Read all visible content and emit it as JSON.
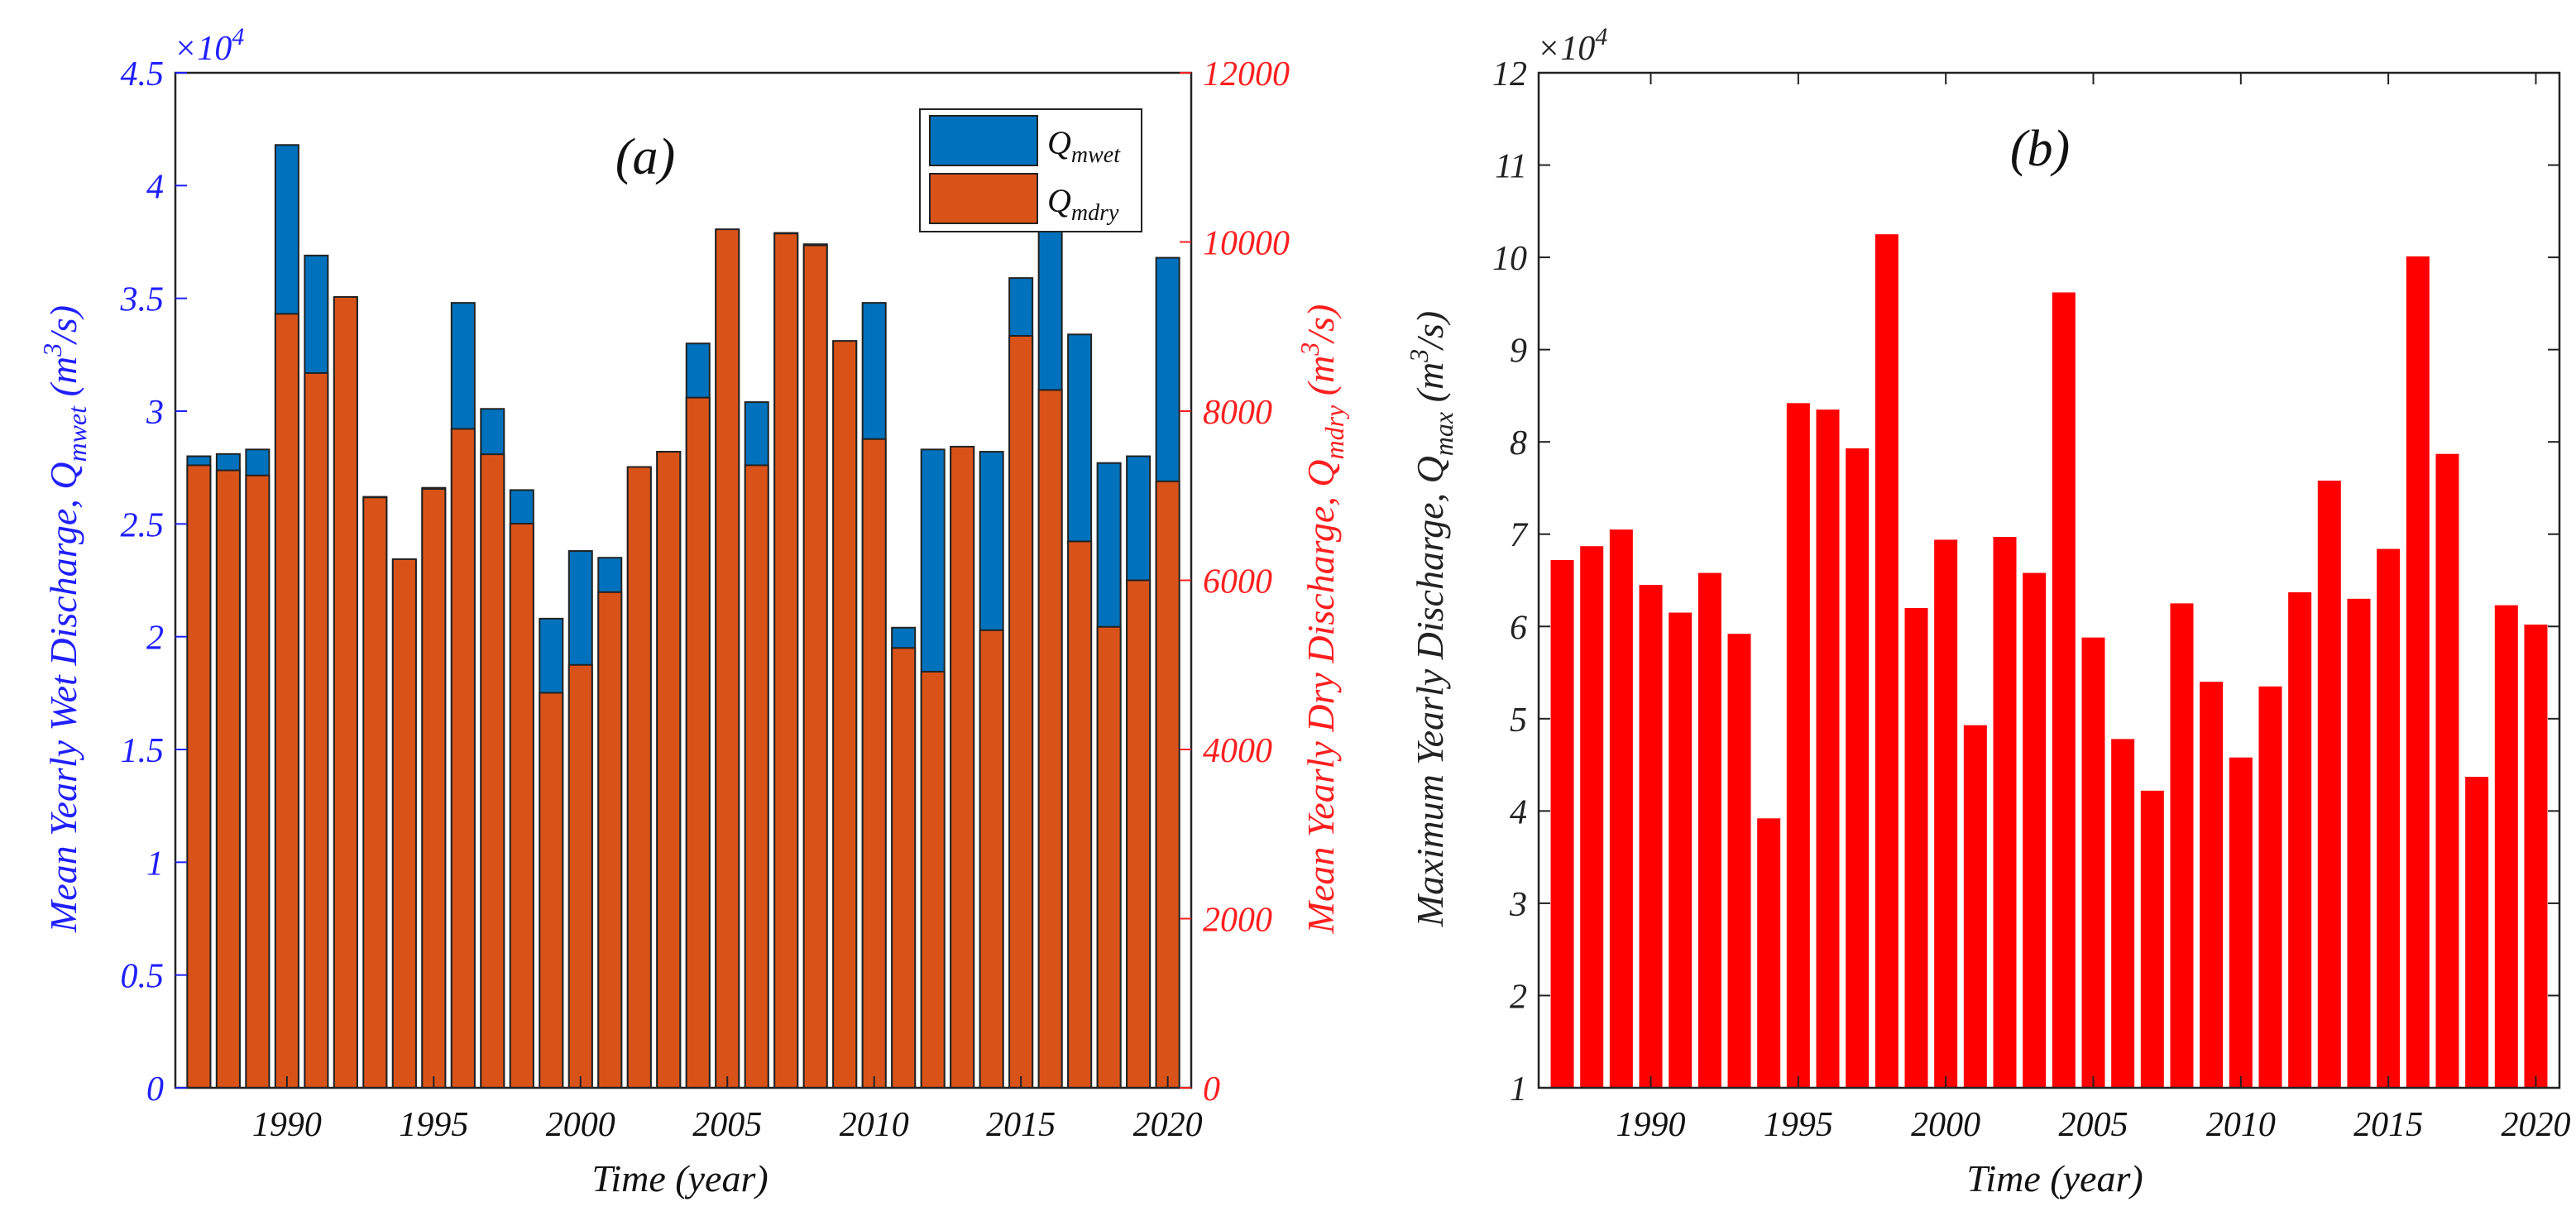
{
  "chart_data": [
    {
      "id": "a",
      "type": "bar",
      "panel_label": "(a)",
      "xlabel": "Time (year)",
      "ylabel_left": "Mean Yearly Wet Discharge, Q",
      "ylabel_left_sub": "mwet",
      "ylabel_left_units": " (m",
      "ylabel_left_units_sup": "3",
      "ylabel_left_units_end": "/s)",
      "ylabel_right": "Mean Yearly Dry Discharge, Q",
      "ylabel_right_sub": "mdry",
      "ylabel_right_units": " (m",
      "ylabel_right_units_sup": "3",
      "ylabel_right_units_end": "/s)",
      "left_exponent_base": "×10",
      "left_exponent_power": "4",
      "left_ylim": [
        0,
        4.5
      ],
      "left_yticks": [
        "0",
        "0.5",
        "1",
        "1.5",
        "2",
        "2.5",
        "3",
        "3.5",
        "4",
        "4.5"
      ],
      "right_ylim": [
        0,
        12000
      ],
      "right_yticks": [
        "0",
        "2000",
        "4000",
        "6000",
        "8000",
        "10000",
        "12000"
      ],
      "xlim": [
        1986.2,
        2020.8
      ],
      "xticks": [
        "1990",
        "1995",
        "2000",
        "2005",
        "2010",
        "2015",
        "2020"
      ],
      "legend": {
        "placement": "top-right",
        "entries": [
          {
            "symbol": "Q",
            "sub": "mwet",
            "color": "#0072BD"
          },
          {
            "symbol": "Q",
            "sub": "mdry",
            "color": "#D95319"
          }
        ]
      },
      "x": [
        1987,
        1988,
        1989,
        1990,
        1991,
        1992,
        1993,
        1994,
        1995,
        1996,
        1997,
        1998,
        1999,
        2000,
        2001,
        2002,
        2003,
        2004,
        2005,
        2006,
        2007,
        2008,
        2009,
        2010,
        2011,
        2012,
        2013,
        2014,
        2015,
        2016,
        2017,
        2018,
        2019,
        2020
      ],
      "series": [
        {
          "name": "Q_mwet (×10^4 m^3/s)",
          "color": "#0072BD",
          "values": [
            2.8,
            2.81,
            2.83,
            4.18,
            3.69,
            3.5,
            2.62,
            2.34,
            2.66,
            3.48,
            3.01,
            2.65,
            2.08,
            2.38,
            2.35,
            2.75,
            2.82,
            3.3,
            3.8,
            3.04,
            3.79,
            3.74,
            3.31,
            3.48,
            2.04,
            2.83,
            2.84,
            2.82,
            3.59,
            3.8,
            3.34,
            2.77,
            2.8,
            3.68
          ]
        },
        {
          "name": "Q_mdry (m^3/s)",
          "color": "#D95319",
          "values": [
            7360,
            7300,
            7240,
            9150,
            8450,
            9350,
            6980,
            6250,
            7080,
            7790,
            7490,
            6670,
            4670,
            5000,
            5860,
            7340,
            7520,
            8160,
            10150,
            7360,
            10100,
            9960,
            8830,
            7670,
            5200,
            4920,
            7580,
            5410,
            8890,
            8250,
            6460,
            5450,
            6000,
            7170
          ]
        }
      ]
    },
    {
      "id": "b",
      "type": "bar",
      "panel_label": "(b)",
      "xlabel": "Time (year)",
      "ylabel": "Maximum Yearly Discharge, Q",
      "ylabel_sub": "max",
      "ylabel_units": " (m",
      "ylabel_units_sup": "3",
      "ylabel_units_end": "/s)",
      "exponent_base": "×10",
      "exponent_power": "4",
      "ylim": [
        1,
        12
      ],
      "yticks": [
        "1",
        "2",
        "3",
        "4",
        "5",
        "6",
        "7",
        "8",
        "9",
        "10",
        "11",
        "12"
      ],
      "xlim": [
        1986.2,
        2020.8
      ],
      "xticks": [
        "1990",
        "1995",
        "2000",
        "2005",
        "2010",
        "2015",
        "2020"
      ],
      "x": [
        1987,
        1988,
        1989,
        1990,
        1991,
        1992,
        1993,
        1994,
        1995,
        1996,
        1997,
        1998,
        1999,
        2000,
        2001,
        2002,
        2003,
        2004,
        2005,
        2006,
        2007,
        2008,
        2009,
        2010,
        2011,
        2012,
        2013,
        2014,
        2015,
        2016,
        2017,
        2018,
        2019,
        2020
      ],
      "series": [
        {
          "name": "Q_max (×10^4 m^3/s)",
          "color": "#FF0000",
          "values": [
            6.72,
            6.87,
            7.05,
            6.45,
            6.15,
            6.58,
            5.92,
            3.92,
            8.42,
            8.35,
            7.93,
            10.25,
            6.2,
            6.94,
            4.93,
            6.97,
            6.58,
            9.62,
            5.88,
            4.78,
            4.22,
            6.25,
            5.4,
            4.58,
            5.35,
            6.37,
            7.58,
            6.3,
            6.84,
            10.01,
            7.87,
            4.37,
            6.23,
            6.02
          ]
        }
      ]
    }
  ]
}
